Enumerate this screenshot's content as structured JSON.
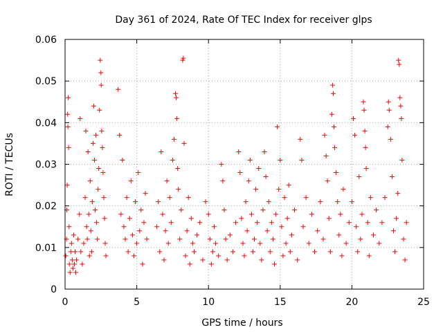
{
  "chart_data": {
    "type": "scatter",
    "title": "Day 361 of 2024, Rate Of TEC Index for receiver glps",
    "xlabel": "GPS time / hours",
    "ylabel": "ROTI / TECUs",
    "xlim": [
      0,
      25
    ],
    "ylim": [
      0,
      0.06
    ],
    "x_ticks": [
      0,
      5,
      10,
      15,
      20,
      25
    ],
    "x_tick_labels": [
      "0",
      "5",
      "10",
      "15",
      "20",
      "25"
    ],
    "y_ticks": [
      0,
      0.01,
      0.02,
      0.03,
      0.04,
      0.05,
      0.06
    ],
    "y_tick_labels": [
      "0",
      "0.01",
      "0.02",
      "0.03",
      "0.04",
      "0.05",
      "0.06"
    ],
    "grid": true,
    "marker": "+",
    "series": [
      {
        "name": "ROTI",
        "color": "#ff0000",
        "points": [
          [
            0.05,
            0.008
          ],
          [
            0.1,
            0.012
          ],
          [
            0.12,
            0.019
          ],
          [
            0.15,
            0.025
          ],
          [
            0.18,
            0.042
          ],
          [
            0.2,
            0.039
          ],
          [
            0.22,
            0.046
          ],
          [
            0.25,
            0.034
          ],
          [
            0.28,
            0.015
          ],
          [
            0.3,
            0.006
          ],
          [
            0.35,
            0.004
          ],
          [
            0.4,
            0.009
          ],
          [
            0.45,
            0.011
          ],
          [
            0.5,
            0.007
          ],
          [
            0.55,
            0.005
          ],
          [
            0.6,
            0.013
          ],
          [
            0.65,
            0.006
          ],
          [
            0.7,
            0.009
          ],
          [
            0.75,
            0.004
          ],
          [
            0.8,
            0.007
          ],
          [
            0.9,
            0.012
          ],
          [
            1.0,
            0.018
          ],
          [
            1.05,
            0.041
          ],
          [
            1.1,
            0.009
          ],
          [
            1.2,
            0.006
          ],
          [
            1.3,
            0.011
          ],
          [
            1.4,
            0.022
          ],
          [
            1.45,
            0.038
          ],
          [
            1.5,
            0.015
          ],
          [
            1.55,
            0.012
          ],
          [
            1.6,
            0.033
          ],
          [
            1.65,
            0.018
          ],
          [
            1.7,
            0.008
          ],
          [
            1.75,
            0.026
          ],
          [
            1.8,
            0.014
          ],
          [
            1.85,
            0.009
          ],
          [
            1.9,
            0.021
          ],
          [
            1.95,
            0.035
          ],
          [
            2.0,
            0.044
          ],
          [
            2.05,
            0.031
          ],
          [
            2.1,
            0.019
          ],
          [
            2.15,
            0.037
          ],
          [
            2.2,
            0.016
          ],
          [
            2.25,
            0.012
          ],
          [
            2.3,
            0.024
          ],
          [
            2.35,
            0.029
          ],
          [
            2.4,
            0.043
          ],
          [
            2.45,
            0.055
          ],
          [
            2.5,
            0.052
          ],
          [
            2.52,
            0.049
          ],
          [
            2.55,
            0.038
          ],
          [
            2.6,
            0.034
          ],
          [
            2.65,
            0.028
          ],
          [
            2.7,
            0.022
          ],
          [
            2.75,
            0.017
          ],
          [
            2.8,
            0.011
          ],
          [
            2.85,
            0.008
          ],
          [
            3.7,
            0.048
          ],
          [
            3.8,
            0.037
          ],
          [
            3.9,
            0.018
          ],
          [
            4.0,
            0.031
          ],
          [
            4.1,
            0.015
          ],
          [
            4.2,
            0.012
          ],
          [
            4.3,
            0.022
          ],
          [
            4.4,
            0.009
          ],
          [
            4.5,
            0.017
          ],
          [
            4.6,
            0.026
          ],
          [
            4.7,
            0.013
          ],
          [
            4.8,
            0.008
          ],
          [
            4.9,
            0.021
          ],
          [
            5.0,
            0.011
          ],
          [
            5.1,
            0.028
          ],
          [
            5.2,
            0.014
          ],
          [
            5.3,
            0.019
          ],
          [
            5.4,
            0.006
          ],
          [
            5.5,
            0.016
          ],
          [
            5.6,
            0.023
          ],
          [
            5.7,
            0.012
          ],
          [
            6.4,
            0.015
          ],
          [
            6.5,
            0.021
          ],
          [
            6.6,
            0.009
          ],
          [
            6.7,
            0.033
          ],
          [
            6.8,
            0.018
          ],
          [
            6.9,
            0.007
          ],
          [
            7.0,
            0.014
          ],
          [
            7.1,
            0.026
          ],
          [
            7.2,
            0.011
          ],
          [
            7.3,
            0.022
          ],
          [
            7.4,
            0.016
          ],
          [
            7.5,
            0.031
          ],
          [
            7.6,
            0.036
          ],
          [
            7.7,
            0.047
          ],
          [
            7.75,
            0.046
          ],
          [
            7.8,
            0.041
          ],
          [
            7.85,
            0.029
          ],
          [
            7.9,
            0.024
          ],
          [
            8.0,
            0.012
          ],
          [
            8.1,
            0.019
          ],
          [
            8.2,
            0.055
          ],
          [
            8.25,
            0.0555
          ],
          [
            8.3,
            0.035
          ],
          [
            8.4,
            0.008
          ],
          [
            8.5,
            0.014
          ],
          [
            8.6,
            0.022
          ],
          [
            8.7,
            0.006
          ],
          [
            8.8,
            0.017
          ],
          [
            8.9,
            0.011
          ],
          [
            9.0,
            0.009
          ],
          [
            9.2,
            0.013
          ],
          [
            9.4,
            0.016
          ],
          [
            9.6,
            0.007
          ],
          [
            9.8,
            0.021
          ],
          [
            10.0,
            0.018
          ],
          [
            10.1,
            0.012
          ],
          [
            10.2,
            0.006
          ],
          [
            10.3,
            0.009
          ],
          [
            10.4,
            0.015
          ],
          [
            10.5,
            0.011
          ],
          [
            10.7,
            0.008
          ],
          [
            10.9,
            0.03
          ],
          [
            11.0,
            0.026
          ],
          [
            11.1,
            0.019
          ],
          [
            11.2,
            0.012
          ],
          [
            11.3,
            0.007
          ],
          [
            11.5,
            0.013
          ],
          [
            11.7,
            0.009
          ],
          [
            11.9,
            0.016
          ],
          [
            12.1,
            0.033
          ],
          [
            12.2,
            0.028
          ],
          [
            12.3,
            0.017
          ],
          [
            12.4,
            0.011
          ],
          [
            12.5,
            0.008
          ],
          [
            12.6,
            0.021
          ],
          [
            12.7,
            0.014
          ],
          [
            12.8,
            0.026
          ],
          [
            12.9,
            0.031
          ],
          [
            13.0,
            0.018
          ],
          [
            13.1,
            0.009
          ],
          [
            13.2,
            0.012
          ],
          [
            13.3,
            0.024
          ],
          [
            13.4,
            0.016
          ],
          [
            13.5,
            0.029
          ],
          [
            13.6,
            0.011
          ],
          [
            13.7,
            0.007
          ],
          [
            13.8,
            0.019
          ],
          [
            13.9,
            0.033
          ],
          [
            14.0,
            0.027
          ],
          [
            14.1,
            0.014
          ],
          [
            14.2,
            0.021
          ],
          [
            14.3,
            0.009
          ],
          [
            14.4,
            0.016
          ],
          [
            14.5,
            0.012
          ],
          [
            14.6,
            0.006
          ],
          [
            14.7,
            0.018
          ],
          [
            14.8,
            0.039
          ],
          [
            14.9,
            0.024
          ],
          [
            15.0,
            0.031
          ],
          [
            15.1,
            0.015
          ],
          [
            15.2,
            0.008
          ],
          [
            15.3,
            0.022
          ],
          [
            15.4,
            0.011
          ],
          [
            15.5,
            0.017
          ],
          [
            15.6,
            0.025
          ],
          [
            15.7,
            0.009
          ],
          [
            15.8,
            0.013
          ],
          [
            16.0,
            0.019
          ],
          [
            16.2,
            0.007
          ],
          [
            16.4,
            0.036
          ],
          [
            16.5,
            0.031
          ],
          [
            16.6,
            0.015
          ],
          [
            16.8,
            0.022
          ],
          [
            17.0,
            0.011
          ],
          [
            17.2,
            0.018
          ],
          [
            17.4,
            0.009
          ],
          [
            17.6,
            0.014
          ],
          [
            17.8,
            0.021
          ],
          [
            18.0,
            0.012
          ],
          [
            18.1,
            0.037
          ],
          [
            18.2,
            0.032
          ],
          [
            18.3,
            0.026
          ],
          [
            18.4,
            0.017
          ],
          [
            18.5,
            0.009
          ],
          [
            18.6,
            0.042
          ],
          [
            18.65,
            0.049
          ],
          [
            18.7,
            0.047
          ],
          [
            18.75,
            0.039
          ],
          [
            18.8,
            0.034
          ],
          [
            18.9,
            0.028
          ],
          [
            19.0,
            0.021
          ],
          [
            19.1,
            0.013
          ],
          [
            19.2,
            0.018
          ],
          [
            19.3,
            0.008
          ],
          [
            19.4,
            0.024
          ],
          [
            19.6,
            0.011
          ],
          [
            19.8,
            0.016
          ],
          [
            20.0,
            0.021
          ],
          [
            20.1,
            0.041
          ],
          [
            20.2,
            0.037
          ],
          [
            20.3,
            0.015
          ],
          [
            20.4,
            0.009
          ],
          [
            20.5,
            0.027
          ],
          [
            20.6,
            0.012
          ],
          [
            20.7,
            0.018
          ],
          [
            20.8,
            0.045
          ],
          [
            20.85,
            0.043
          ],
          [
            20.9,
            0.038
          ],
          [
            20.95,
            0.034
          ],
          [
            21.0,
            0.029
          ],
          [
            21.1,
            0.016
          ],
          [
            21.2,
            0.008
          ],
          [
            21.3,
            0.022
          ],
          [
            21.5,
            0.013
          ],
          [
            21.7,
            0.019
          ],
          [
            21.9,
            0.011
          ],
          [
            22.1,
            0.016
          ],
          [
            22.3,
            0.022
          ],
          [
            22.5,
            0.039
          ],
          [
            22.55,
            0.045
          ],
          [
            22.6,
            0.043
          ],
          [
            22.7,
            0.036
          ],
          [
            22.8,
            0.027
          ],
          [
            22.9,
            0.014
          ],
          [
            23.0,
            0.009
          ],
          [
            23.1,
            0.017
          ],
          [
            23.2,
            0.023
          ],
          [
            23.25,
            0.055
          ],
          [
            23.3,
            0.054
          ],
          [
            23.35,
            0.046
          ],
          [
            23.4,
            0.044
          ],
          [
            23.45,
            0.041
          ],
          [
            23.5,
            0.031
          ],
          [
            23.6,
            0.012
          ],
          [
            23.7,
            0.007
          ],
          [
            23.8,
            0.016
          ]
        ]
      }
    ]
  }
}
